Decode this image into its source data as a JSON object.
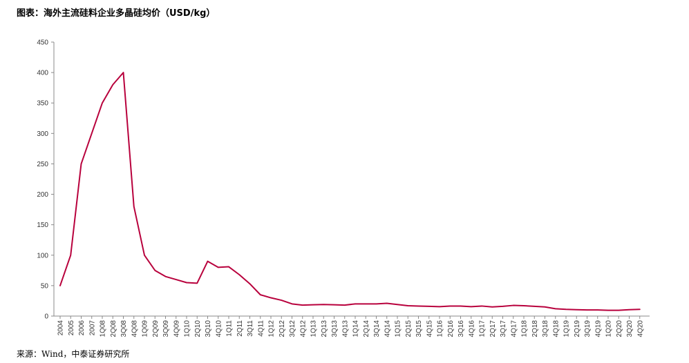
{
  "chart_data": {
    "type": "line",
    "title": "图表：海外主流硅料企业多晶硅均价（USD/kg）",
    "source": "来源：Wind，中泰证券研究所",
    "xlabel": "",
    "ylabel": "",
    "ylim": [
      0,
      450
    ],
    "yticks": [
      0,
      50,
      100,
      150,
      200,
      250,
      300,
      350,
      400,
      450
    ],
    "grid": false,
    "line_color": "#B8003C",
    "categories": [
      "2004",
      "2005",
      "2006",
      "2007",
      "1Q08",
      "2Q08",
      "3Q08",
      "4Q08",
      "1Q09",
      "2Q09",
      "3Q09",
      "4Q09",
      "1Q10",
      "2Q10",
      "3Q10",
      "4Q10",
      "1Q11",
      "2Q11",
      "3Q11",
      "4Q11",
      "1Q12",
      "2Q12",
      "3Q12",
      "4Q12",
      "1Q13",
      "2Q13",
      "3Q13",
      "4Q13",
      "1Q14",
      "2Q14",
      "3Q14",
      "4Q14",
      "1Q15",
      "2Q15",
      "3Q15",
      "4Q15",
      "1Q16",
      "2Q16",
      "3Q16",
      "4Q16",
      "1Q17",
      "2Q17",
      "3Q17",
      "4Q17",
      "1Q18",
      "2Q18",
      "3Q18",
      "4Q18",
      "1Q19",
      "2Q19",
      "3Q19",
      "4Q19",
      "1Q20",
      "2Q20",
      "3Q20",
      "4Q20"
    ],
    "values": [
      50,
      100,
      250,
      300,
      350,
      380,
      400,
      180,
      100,
      75,
      65,
      60,
      55,
      54,
      90,
      80,
      81,
      68,
      53,
      35,
      30,
      26,
      20,
      18,
      18.5,
      19,
      18.5,
      18,
      20,
      20,
      20,
      21,
      19,
      17,
      16.5,
      16,
      15.5,
      16.5,
      16.5,
      15.5,
      16.5,
      15,
      16,
      17.5,
      17,
      16,
      15,
      12,
      11,
      10.5,
      10,
      10,
      9.5,
      9.5,
      10.5,
      11
    ]
  }
}
